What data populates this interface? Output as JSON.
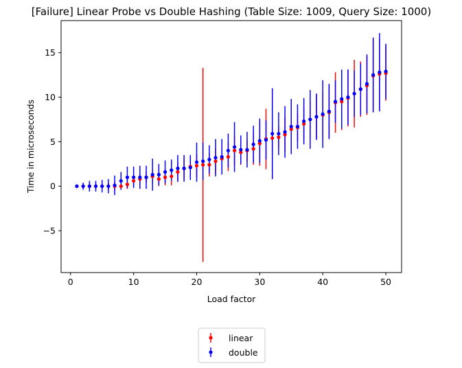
{
  "chart_data": {
    "type": "scatter",
    "title": "[Failure] Linear Probe vs Double Hashing (Table Size: 1009, Query Size: 1000)",
    "xlabel": "Load factor",
    "ylabel": "Time in microseconds",
    "xlim": [
      -1.5,
      52.5
    ],
    "ylim": [
      -9.7,
      18.6
    ],
    "xticks": [
      0,
      10,
      20,
      30,
      40,
      50
    ],
    "yticks": [
      -5,
      0,
      5,
      10,
      15
    ],
    "xtick_labels": [
      "0",
      "10",
      "20",
      "30",
      "40",
      "50"
    ],
    "ytick_labels": [
      "−5",
      "0",
      "5",
      "10",
      "15"
    ],
    "grid": false,
    "legend_position": "below-center",
    "x": [
      1,
      2,
      3,
      4,
      5,
      6,
      7,
      8,
      9,
      10,
      11,
      12,
      13,
      14,
      15,
      16,
      17,
      18,
      19,
      20,
      21,
      22,
      23,
      24,
      25,
      26,
      27,
      28,
      29,
      30,
      31,
      32,
      33,
      34,
      35,
      36,
      37,
      38,
      39,
      40,
      41,
      42,
      43,
      44,
      45,
      46,
      47,
      48,
      49,
      50
    ],
    "series": [
      {
        "name": "linear",
        "color": "#ff0000",
        "values": [
          0.0,
          0.0,
          0.0,
          0.0,
          0.0,
          0.0,
          0.0,
          0.0,
          0.2,
          0.6,
          0.8,
          1.0,
          1.1,
          0.8,
          1.0,
          1.1,
          1.6,
          2.0,
          2.2,
          2.3,
          2.4,
          2.4,
          2.8,
          3.1,
          3.3,
          4.0,
          3.8,
          4.0,
          4.2,
          4.8,
          5.3,
          5.4,
          5.5,
          5.8,
          6.4,
          6.6,
          7.0,
          7.5,
          7.8,
          8.0,
          8.3,
          9.4,
          9.5,
          9.9,
          10.4,
          10.9,
          11.3,
          12.4,
          12.6,
          12.7
        ],
        "errors": [
          0.2,
          0.2,
          0.3,
          0.3,
          0.4,
          0.4,
          0.5,
          0.3,
          0.5,
          0.6,
          0.6,
          0.6,
          0.8,
          0.8,
          0.9,
          1.0,
          1.1,
          1.2,
          1.2,
          1.3,
          10.9,
          1.3,
          1.4,
          1.5,
          1.6,
          1.7,
          1.4,
          1.2,
          1.8,
          2.5,
          3.4,
          1.4,
          1.2,
          1.9,
          1.8,
          1.6,
          1.9,
          2.1,
          2.5,
          2.6,
          3.0,
          3.4,
          3.2,
          3.2,
          3.8,
          3.1,
          3.3,
          4.1,
          4.0,
          3.1
        ]
      },
      {
        "name": "double",
        "color": "#0000ff",
        "values": [
          0.0,
          0.0,
          0.0,
          0.0,
          0.0,
          0.0,
          0.1,
          0.6,
          1.0,
          1.0,
          1.0,
          1.0,
          1.3,
          1.3,
          1.6,
          1.8,
          2.0,
          2.0,
          2.1,
          2.7,
          2.8,
          3.0,
          3.2,
          3.3,
          4.0,
          4.4,
          4.1,
          4.1,
          4.7,
          5.1,
          5.2,
          5.9,
          5.9,
          6.1,
          6.7,
          6.7,
          7.3,
          7.5,
          7.8,
          8.1,
          8.4,
          9.5,
          9.8,
          10.0,
          10.4,
          10.9,
          11.5,
          12.5,
          12.8,
          12.9
        ],
        "errors": [
          0.2,
          0.4,
          0.6,
          0.6,
          0.7,
          0.8,
          1.1,
          1.0,
          1.2,
          1.2,
          1.3,
          1.3,
          1.8,
          1.2,
          1.3,
          1.2,
          1.5,
          1.5,
          1.4,
          2.2,
          2.1,
          1.6,
          2.1,
          2.0,
          1.9,
          2.8,
          1.6,
          2.0,
          2.1,
          2.5,
          2.2,
          5.1,
          2.4,
          2.9,
          3.1,
          2.5,
          2.6,
          3.3,
          2.6,
          3.8,
          3.1,
          2.4,
          3.3,
          3.1,
          2.6,
          2.9,
          3.3,
          4.2,
          4.4,
          3.1
        ]
      }
    ]
  }
}
